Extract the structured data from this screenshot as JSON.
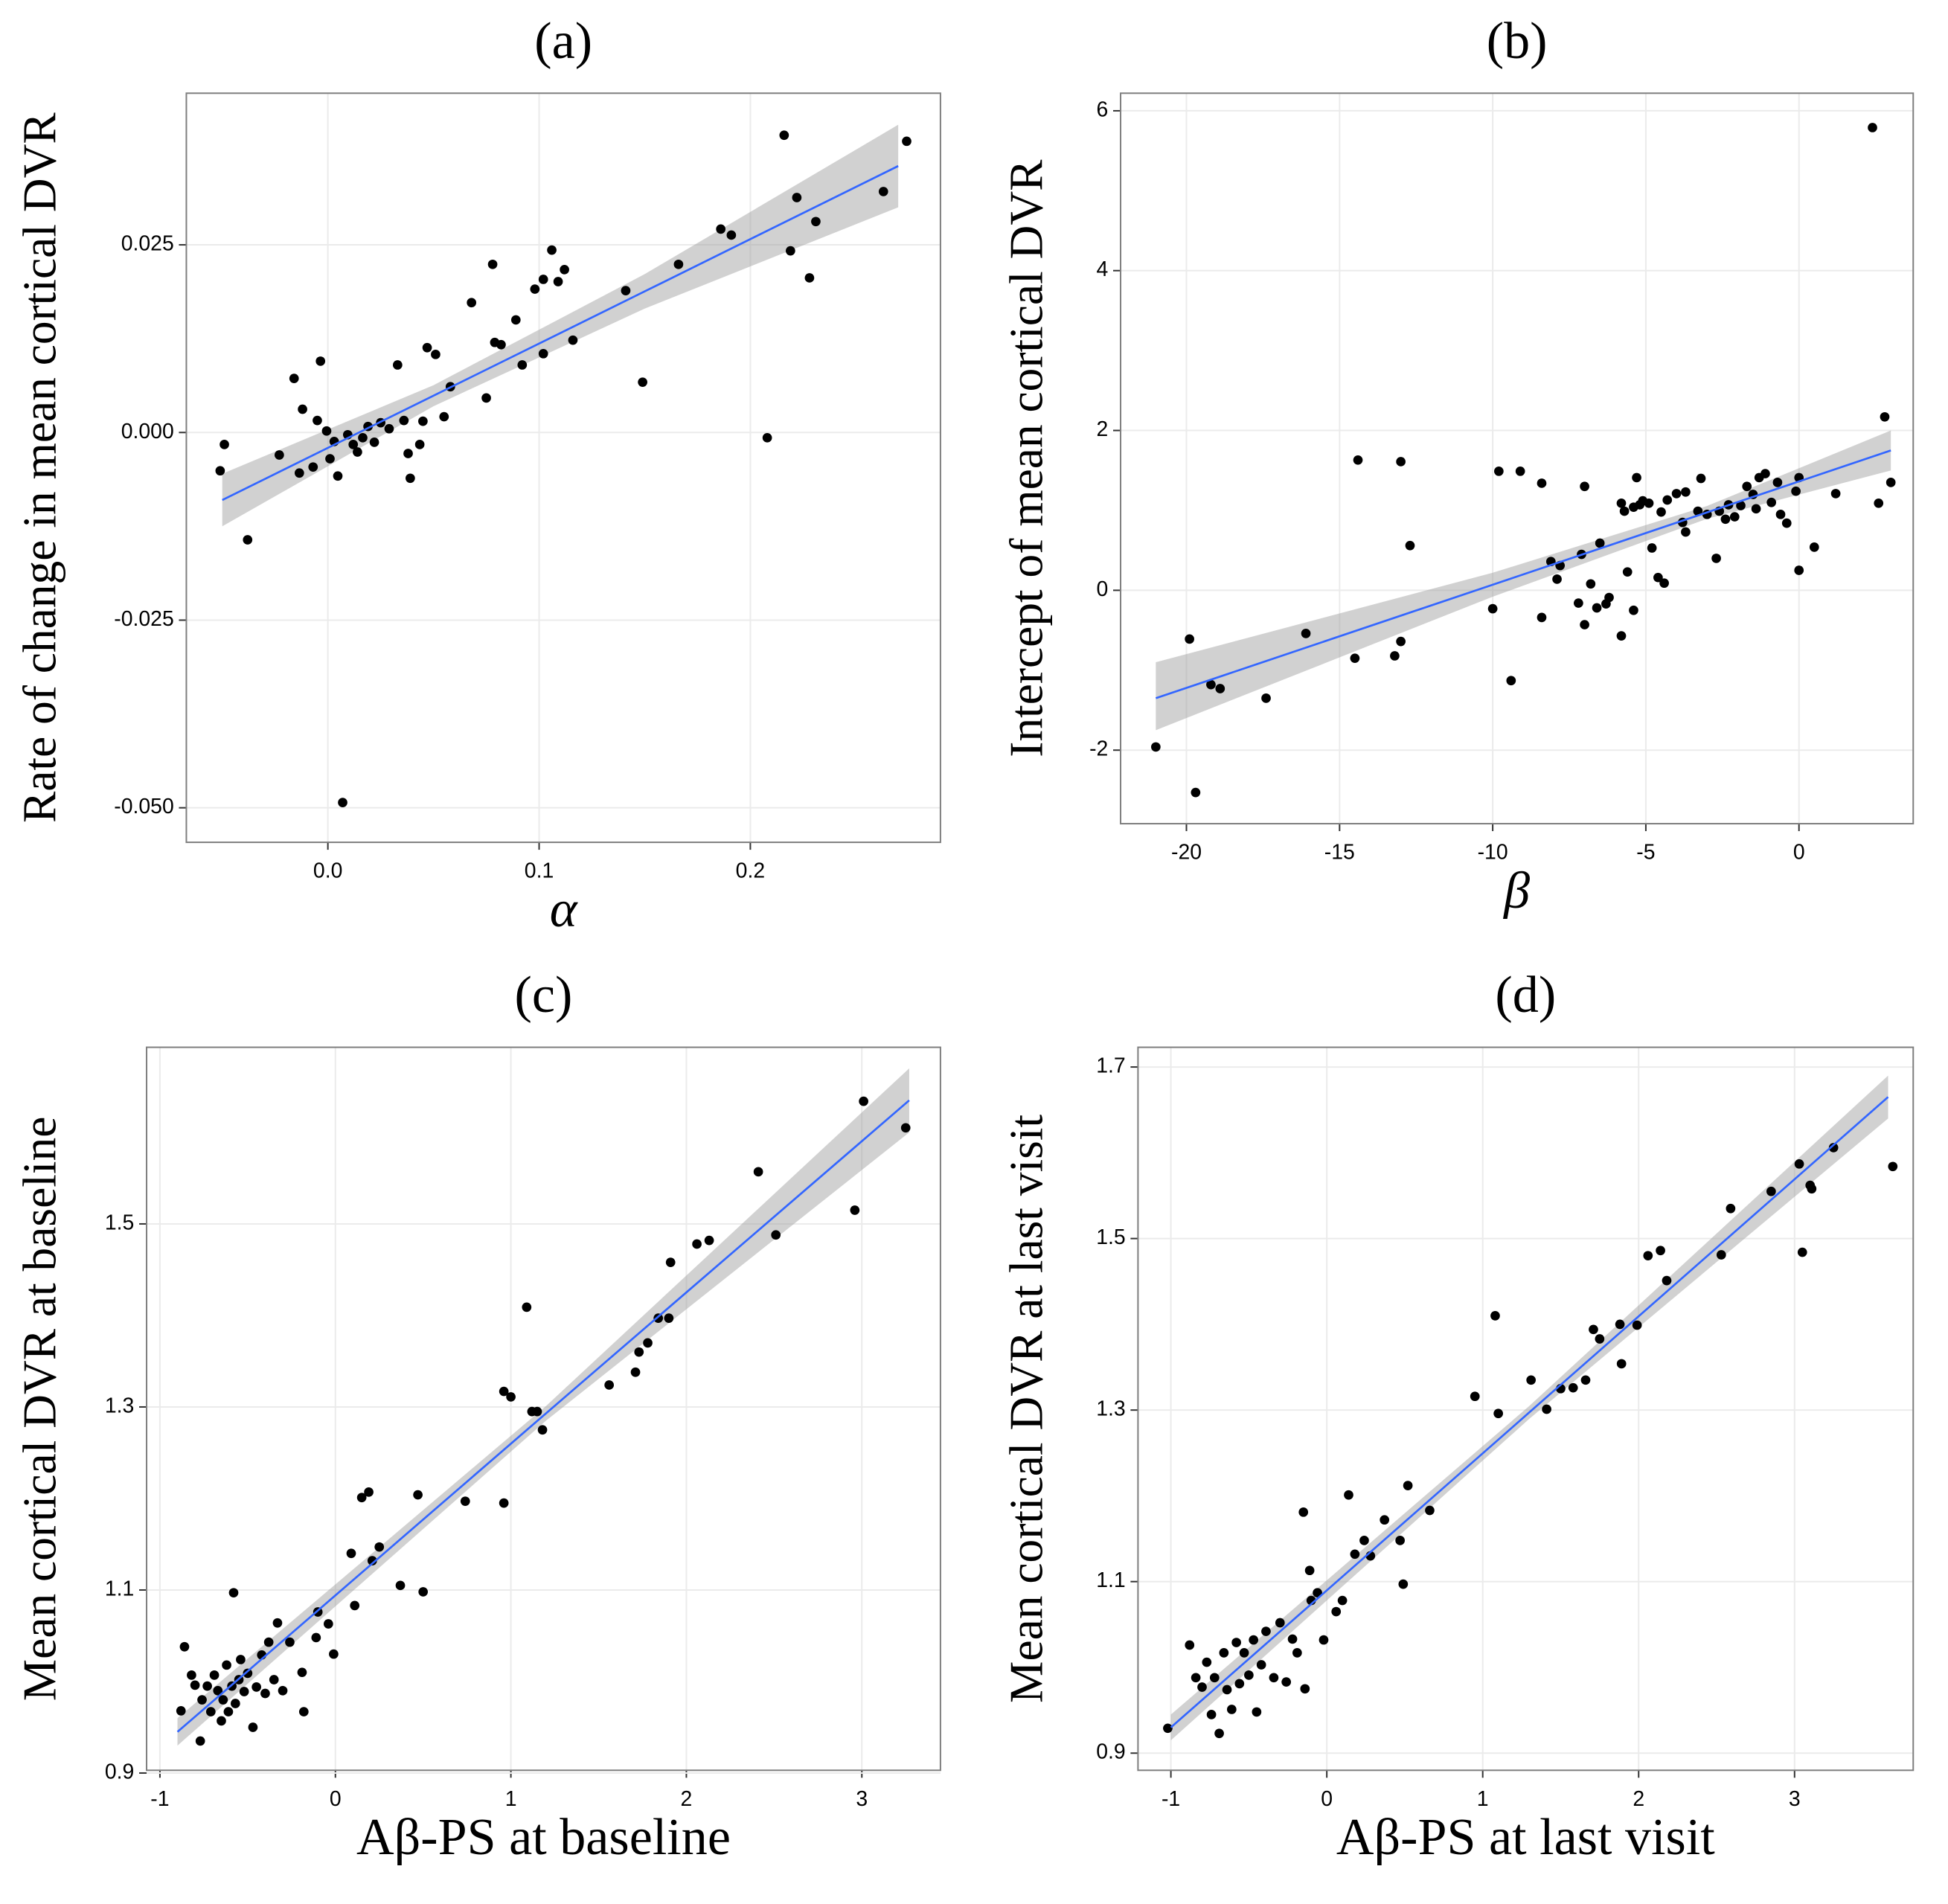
{
  "chart_data": [
    {
      "type": "scatter",
      "title": "(a)",
      "x_label": "α",
      "y_label": "Rate of change in mean cortical DVR",
      "x": [
        -0.051,
        -0.049,
        -0.038,
        -0.023,
        -0.016,
        -0.0135,
        -0.012,
        -0.007,
        -0.005,
        -0.0035,
        -0.0006,
        0.001,
        0.003,
        0.0047,
        0.007,
        0.0094,
        0.012,
        0.014,
        0.0165,
        0.019,
        0.022,
        0.025,
        0.029,
        0.033,
        0.036,
        0.038,
        0.039,
        0.0435,
        0.045,
        0.047,
        0.051,
        0.055,
        0.058,
        0.068,
        0.075,
        0.078,
        0.079,
        0.082,
        0.089,
        0.092,
        0.098,
        0.102,
        0.102,
        0.106,
        0.109,
        0.112,
        0.116,
        0.141,
        0.149,
        0.166,
        0.186,
        0.191,
        0.208,
        0.216,
        0.219,
        0.222,
        0.228,
        0.231,
        0.263,
        0.274
      ],
      "y": [
        -0.0051,
        -0.0016,
        -0.0143,
        -0.003,
        0.0072,
        -0.0054,
        0.0031,
        -0.0046,
        0.0016,
        0.0095,
        0.0002,
        -0.0035,
        -0.0012,
        -0.0058,
        -0.0493,
        -0.0003,
        -0.0016,
        -0.0026,
        -0.0007,
        0.0008,
        -0.0013,
        0.0013,
        0.0005,
        0.009,
        0.0016,
        -0.0028,
        -0.0061,
        -0.0016,
        0.0015,
        0.0113,
        0.0104,
        0.0021,
        0.0061,
        0.0173,
        0.0046,
        0.0224,
        0.012,
        0.0117,
        0.015,
        0.009,
        0.0191,
        0.0105,
        0.0204,
        0.0243,
        0.0201,
        0.0217,
        0.0123,
        0.0189,
        0.0067,
        0.0224,
        0.0271,
        0.0263,
        -0.0007,
        0.0396,
        0.0242,
        0.0313,
        0.0206,
        0.0281,
        0.0321,
        0.0388
      ],
      "color": "#000000",
      "xlim": [
        -0.067,
        0.29
      ],
      "ylim": [
        -0.0546,
        0.0452
      ],
      "xticks": [
        {
          "value": 0,
          "label": "0.0"
        },
        0.1,
        0.2
      ],
      "yticks": [
        {
          "value": -0.05,
          "label": "-0.050"
        },
        -0.025,
        {
          "value": 0,
          "label": "0.000"
        },
        0.025
      ],
      "grid": true,
      "fit": {
        "x": [
          -0.05,
          0.05,
          0.15,
          0.27
        ],
        "y": [
          -0.009,
          0.0049,
          0.0188,
          0.0355
        ],
        "lower": [
          -0.0125,
          0.0035,
          0.0165,
          0.03
        ],
        "upper": [
          -0.0055,
          0.0063,
          0.0211,
          0.041
        ],
        "color": "#3366ff",
        "band_color": "#999999"
      }
    },
    {
      "type": "scatter",
      "title": "(b)",
      "x_label": "β",
      "y_label": "Intercept of mean cortical DVR",
      "x": [
        -21.0,
        -19.9,
        -19.7,
        -19.2,
        -18.9,
        -17.4,
        -16.1,
        -14.5,
        -14.4,
        -13.2,
        -13.0,
        -13.0,
        -12.7,
        -10.0,
        -9.8,
        -9.4,
        -9.1,
        -8.4,
        -8.4,
        -8.1,
        -7.9,
        -7.8,
        -7.2,
        -7.1,
        -7.0,
        -7.0,
        -6.8,
        -6.6,
        -6.5,
        -6.3,
        -6.2,
        -5.8,
        -5.8,
        -5.7,
        -5.6,
        -5.4,
        -5.4,
        -5.3,
        -5.2,
        -5.1,
        -4.9,
        -4.8,
        -4.6,
        -4.5,
        -4.4,
        -4.3,
        -4.0,
        -3.8,
        -3.7,
        -3.7,
        -3.3,
        -3.2,
        -3.0,
        -2.7,
        -2.6,
        -2.4,
        -2.3,
        -2.1,
        -1.9,
        -1.7,
        -1.5,
        -1.4,
        -1.3,
        -1.1,
        -0.9,
        -0.7,
        -0.6,
        -0.4,
        -0.1,
        0.0,
        0.0,
        0.5,
        1.2,
        2.4,
        2.6,
        2.8,
        3.0
      ],
      "y": [
        -1.96,
        -0.61,
        -2.53,
        -1.18,
        -1.23,
        -1.35,
        -0.54,
        -0.85,
        1.63,
        -0.82,
        1.61,
        -0.64,
        0.56,
        -0.23,
        1.49,
        -1.13,
        1.49,
        1.34,
        -0.34,
        0.36,
        0.14,
        0.31,
        -0.16,
        0.45,
        1.3,
        -0.43,
        0.08,
        -0.22,
        0.59,
        -0.17,
        -0.09,
        1.09,
        -0.57,
        0.99,
        0.23,
        -0.25,
        1.04,
        1.41,
        1.07,
        1.12,
        1.09,
        0.53,
        0.16,
        0.98,
        0.09,
        1.13,
        1.21,
        0.85,
        1.23,
        0.73,
        0.99,
        1.4,
        0.95,
        0.4,
        0.99,
        0.89,
        1.07,
        0.92,
        1.06,
        1.3,
        1.2,
        1.02,
        1.41,
        1.46,
        1.1,
        1.35,
        0.95,
        0.84,
        1.24,
        0.25,
        1.41,
        0.54,
        1.21,
        5.79,
        1.09,
        2.17,
        1.35
      ],
      "color": "#000000",
      "xlim": [
        -22.15,
        3.73
      ],
      "ylim": [
        -2.92,
        6.22
      ],
      "xticks": [
        -20,
        -15,
        -10,
        -5,
        0
      ],
      "yticks": [
        -2,
        0,
        2,
        4,
        6
      ],
      "grid": true,
      "fit": {
        "x": [
          -21,
          -10,
          -3,
          3
        ],
        "y": [
          -1.35,
          0.07,
          0.975,
          1.75
        ],
        "lower": [
          -1.75,
          -0.08,
          0.895,
          1.5
        ],
        "upper": [
          -0.9,
          0.22,
          1.055,
          2.0
        ],
        "color": "#3366ff",
        "band_color": "#999999"
      }
    },
    {
      "type": "scatter",
      "title": "(c)",
      "x_label": "Aβ-PS at baseline",
      "y_label": "Mean cortical DVR at baseline",
      "x": [
        -0.88,
        -0.86,
        -0.82,
        -0.8,
        -0.77,
        -0.76,
        -0.73,
        -0.71,
        -0.69,
        -0.67,
        -0.65,
        -0.64,
        -0.62,
        -0.61,
        -0.59,
        -0.58,
        -0.57,
        -0.55,
        -0.54,
        -0.52,
        -0.5,
        -0.47,
        -0.45,
        -0.42,
        -0.4,
        -0.38,
        -0.35,
        -0.33,
        -0.3,
        -0.26,
        -0.19,
        -0.18,
        -0.11,
        -0.1,
        -0.04,
        -0.01,
        0.09,
        0.11,
        0.15,
        0.19,
        0.21,
        0.25,
        0.37,
        0.47,
        0.5,
        0.74,
        0.96,
        0.96,
        1.0,
        1.09,
        1.12,
        1.15,
        1.18,
        1.56,
        1.71,
        1.73,
        1.78,
        1.84,
        1.9,
        1.91,
        2.06,
        2.13,
        2.41,
        2.51,
        2.96,
        3.01,
        3.25
      ],
      "y": [
        0.968,
        1.038,
        1.007,
        0.996,
        0.935,
        0.98,
        0.995,
        0.967,
        1.007,
        0.99,
        0.957,
        0.98,
        1.018,
        0.967,
        0.995,
        1.097,
        0.976,
        1.002,
        1.024,
        0.989,
        1.009,
        0.95,
        0.994,
        1.029,
        0.987,
        1.043,
        1.002,
        1.064,
        0.99,
        1.043,
        1.01,
        0.967,
        1.048,
        1.076,
        1.063,
        1.03,
        1.14,
        1.083,
        1.201,
        1.207,
        1.132,
        1.147,
        1.105,
        1.204,
        1.098,
        1.197,
        1.195,
        1.317,
        1.311,
        1.409,
        1.295,
        1.295,
        1.275,
        1.324,
        1.338,
        1.36,
        1.37,
        1.397,
        1.397,
        1.458,
        1.478,
        1.482,
        1.557,
        1.488,
        1.515,
        1.634,
        1.605
      ],
      "color": "#000000",
      "xlim": [
        -1.076,
        3.448
      ],
      "ylim": [
        0.903,
        1.693
      ],
      "xticks": [
        -1,
        0,
        1,
        2,
        3
      ],
      "yticks": [
        0.9,
        1.1,
        1.3,
        1.5
      ],
      "grid": true,
      "fit": {
        "x": [
          -0.9,
          1.2,
          3.27
        ],
        "y": [
          0.945,
          1.293,
          1.635
        ],
        "lower": [
          0.93,
          1.285,
          1.6
        ],
        "upper": [
          0.96,
          1.301,
          1.67
        ],
        "color": "#3366ff",
        "band_color": "#999999"
      }
    },
    {
      "type": "scatter",
      "title": "(d)",
      "x_label": "Aβ-PS at last visit",
      "y_label": "Mean cortical DVR at last visit",
      "x": [
        -1.02,
        -0.88,
        -0.84,
        -0.8,
        -0.77,
        -0.74,
        -0.72,
        -0.69,
        -0.66,
        -0.64,
        -0.61,
        -0.58,
        -0.56,
        -0.53,
        -0.5,
        -0.47,
        -0.45,
        -0.42,
        -0.39,
        -0.34,
        -0.3,
        -0.26,
        -0.22,
        -0.19,
        -0.15,
        -0.14,
        -0.11,
        -0.1,
        -0.06,
        -0.02,
        0.06,
        0.1,
        0.14,
        0.18,
        0.24,
        0.28,
        0.37,
        0.47,
        0.49,
        0.52,
        0.66,
        0.95,
        1.08,
        1.1,
        1.31,
        1.41,
        1.5,
        1.58,
        1.66,
        1.71,
        1.75,
        1.88,
        1.89,
        1.99,
        2.06,
        2.14,
        2.18,
        2.53,
        2.59,
        2.85,
        3.03,
        3.05,
        3.1,
        3.11,
        3.25,
        3.63
      ],
      "y": [
        0.929,
        1.026,
        0.988,
        0.977,
        1.006,
        0.945,
        0.988,
        0.923,
        1.017,
        0.974,
        0.951,
        1.029,
        0.981,
        1.017,
        0.991,
        1.032,
        0.948,
        1.003,
        1.042,
        0.988,
        1.052,
        0.983,
        1.033,
        1.017,
        1.181,
        0.975,
        1.113,
        1.078,
        1.087,
        1.032,
        1.065,
        1.078,
        1.201,
        1.132,
        1.148,
        1.13,
        1.172,
        1.148,
        1.097,
        1.212,
        1.183,
        1.316,
        1.41,
        1.296,
        1.335,
        1.301,
        1.325,
        1.326,
        1.335,
        1.394,
        1.383,
        1.4,
        1.354,
        1.399,
        1.48,
        1.486,
        1.451,
        1.481,
        1.535,
        1.555,
        1.587,
        1.484,
        1.562,
        1.558,
        1.606,
        1.584
      ],
      "color": "#000000",
      "xlim": [
        -1.211,
        3.761
      ],
      "ylim": [
        0.88,
        1.723
      ],
      "xticks": [
        -1,
        0,
        1,
        2,
        3
      ],
      "yticks": [
        0.9,
        1.1,
        1.3,
        1.5,
        1.7
      ],
      "grid": true,
      "fit": {
        "x": [
          -1,
          1.3,
          3.6
        ],
        "y": [
          0.93,
          1.2975,
          1.665
        ],
        "lower": [
          0.915,
          1.29,
          1.64
        ],
        "upper": [
          0.945,
          1.305,
          1.69
        ],
        "color": "#3366ff",
        "band_color": "#999999"
      }
    }
  ]
}
